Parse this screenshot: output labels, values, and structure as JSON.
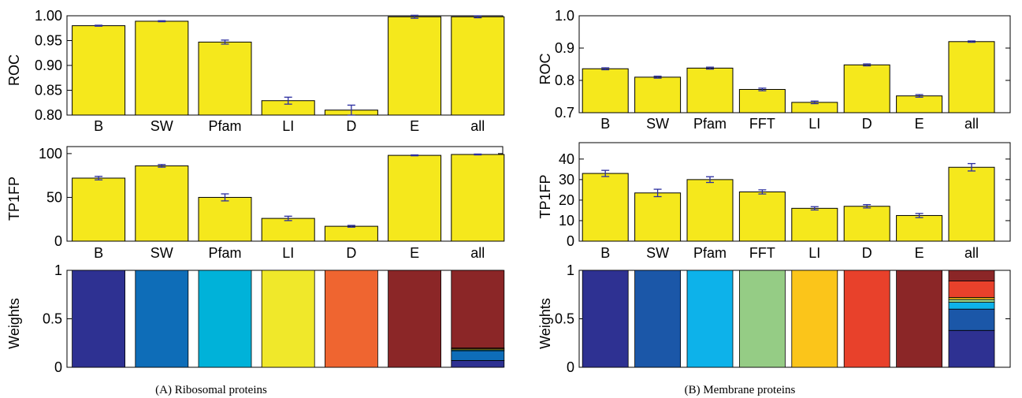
{
  "chart_data": [
    {
      "type": "bar",
      "panel": "A",
      "ylabel": "ROC",
      "categories": [
        "B",
        "SW",
        "Pfam",
        "LI",
        "D",
        "E",
        "all"
      ],
      "values": [
        0.98,
        0.989,
        0.947,
        0.829,
        0.81,
        0.998,
        0.998
      ],
      "errors": [
        0.001,
        0.001,
        0.004,
        0.007,
        0.01,
        0.003,
        0.002
      ],
      "ylim": [
        0.8,
        1.0
      ],
      "yticks": [
        "0.80",
        "0.85",
        "0.90",
        "0.95",
        "1.00"
      ],
      "bar_color": "#f5e81c"
    },
    {
      "type": "bar",
      "panel": "A",
      "ylabel": "TP1FP",
      "categories": [
        "B",
        "SW",
        "Pfam",
        "LI",
        "D",
        "E",
        "all"
      ],
      "values": [
        72,
        86,
        50,
        26,
        17,
        98,
        99
      ],
      "errors": [
        2,
        1.5,
        4,
        2.5,
        1,
        0.5,
        0.5
      ],
      "ylim": [
        0,
        108
      ],
      "yticks": [
        "0",
        "50",
        "100"
      ],
      "bar_color": "#f5e81c"
    },
    {
      "type": "stacked-bar",
      "panel": "A",
      "ylabel": "Weights",
      "series_colors": [
        "#2e3192",
        "#0e6db8",
        "#00b2d9",
        "#f0e82a",
        "#ef6530",
        "#8b2627"
      ],
      "bars": [
        [
          1,
          0,
          0,
          0,
          0,
          0
        ],
        [
          0,
          1,
          0,
          0,
          0,
          0
        ],
        [
          0,
          0,
          1,
          0,
          0,
          0
        ],
        [
          0,
          0,
          0,
          1,
          0,
          0
        ],
        [
          0,
          0,
          0,
          0,
          1,
          0
        ],
        [
          0,
          0,
          0,
          0,
          0,
          1
        ],
        [
          0.07,
          0.1,
          0.01,
          0.01,
          0.01,
          0.8
        ]
      ],
      "ylim": [
        0,
        1
      ],
      "yticks": [
        "0",
        "0.5",
        "1"
      ]
    },
    {
      "type": "bar",
      "panel": "B",
      "ylabel": "ROC",
      "categories": [
        "B",
        "SW",
        "Pfam",
        "FFT",
        "LI",
        "D",
        "E",
        "all"
      ],
      "values": [
        0.836,
        0.81,
        0.838,
        0.772,
        0.732,
        0.848,
        0.752,
        0.92
      ],
      "errors": [
        0.003,
        0.003,
        0.003,
        0.004,
        0.004,
        0.003,
        0.004,
        0.002
      ],
      "ylim": [
        0.7,
        1.0
      ],
      "yticks": [
        "0.7",
        "0.8",
        "0.9",
        "1.0"
      ],
      "bar_color": "#f5e81c"
    },
    {
      "type": "bar",
      "panel": "B",
      "ylabel": "TP1FP",
      "categories": [
        "B",
        "SW",
        "Pfam",
        "FFT",
        "LI",
        "D",
        "E",
        "all"
      ],
      "values": [
        33,
        23.5,
        30,
        24,
        16,
        17,
        12.5,
        36
      ],
      "errors": [
        1.5,
        1.8,
        1.4,
        1.0,
        0.8,
        0.8,
        1.0,
        1.8
      ],
      "ylim": [
        0,
        48
      ],
      "yticks": [
        "0",
        "10",
        "20",
        "30",
        "40"
      ],
      "bar_color": "#f5e81c"
    },
    {
      "type": "stacked-bar",
      "panel": "B",
      "ylabel": "Weights",
      "series_colors": [
        "#2e3192",
        "#1b57a8",
        "#0db2ea",
        "#95cc85",
        "#fbc51a",
        "#e8412b",
        "#8b2627"
      ],
      "bars": [
        [
          1,
          0,
          0,
          0,
          0,
          0,
          0
        ],
        [
          0,
          1,
          0,
          0,
          0,
          0,
          0
        ],
        [
          0,
          0,
          1,
          0,
          0,
          0,
          0
        ],
        [
          0,
          0,
          0,
          1,
          0,
          0,
          0
        ],
        [
          0,
          0,
          0,
          0,
          1,
          0,
          0
        ],
        [
          0,
          0,
          0,
          0,
          0,
          1,
          0
        ],
        [
          0,
          0,
          0,
          0,
          0,
          0,
          1
        ],
        [
          0.38,
          0.22,
          0.07,
          0.03,
          0.02,
          0.17,
          0.11
        ]
      ],
      "ylim": [
        0,
        1
      ],
      "yticks": [
        "0",
        "0.5",
        "1"
      ]
    }
  ],
  "captions": {
    "a": "(A) Ribosomal proteins",
    "b": "(B) Membrane proteins"
  },
  "colors": {
    "error_bar": "#2b2ea0",
    "bar_edge": "#000000"
  }
}
